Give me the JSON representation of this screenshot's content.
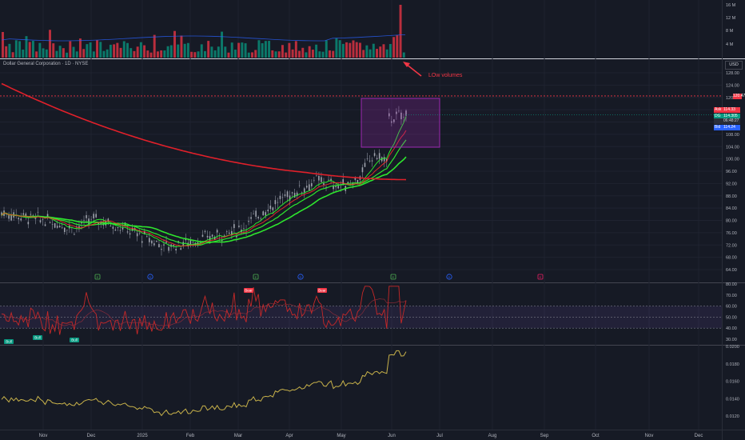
{
  "chart": {
    "symbol_title": "Dollar General Corporation · 1D · NYSE",
    "currency": "USD",
    "annotation": "LOw volumes",
    "price_axis": [
      "128.00",
      "124.00",
      "120.00",
      "116.00",
      "112.00",
      "108.00",
      "104.00",
      "100.00",
      "96.00",
      "92.00",
      "88.00",
      "84.00",
      "80.00",
      "76.00",
      "72.00",
      "68.00",
      "64.00"
    ],
    "volume_axis": [
      "16 M",
      "12 M",
      "8 M",
      "4 M"
    ],
    "rsi_axis": [
      "80.00",
      "70.00",
      "60.00",
      "50.00",
      "40.00",
      "30.00"
    ],
    "osc_axis": [
      "0.0200",
      "0.0180",
      "0.0160",
      "0.0140",
      "0.0120"
    ],
    "time_axis": [
      "Nov",
      "Dec",
      "2025",
      "Feb",
      "Mar",
      "Apr",
      "May",
      "Jun",
      "Jul",
      "Aug",
      "Sep",
      "Oct",
      "Nov",
      "Dec"
    ],
    "price_tags": {
      "red_line": "120.47",
      "ask_label": "Ask",
      "ask": "114.33",
      "last_label": "DG",
      "last": "114.305",
      "timer": "06:48:27",
      "bid_label": "Bid",
      "bid": "114.24"
    },
    "event_markers": [
      "E",
      "D",
      "E",
      "D",
      "E",
      "D",
      "E"
    ],
    "rsi_labels": {
      "bull": "Bull",
      "bear": "Bear"
    },
    "colors": {
      "background": "#161a25",
      "up": "#089981",
      "down": "#f23645",
      "sma_red": "#e0202a",
      "ema_green": "#2ee62e",
      "rsi_line": "#c62828",
      "osc_line": "#c8b24a",
      "box": "#9c27b0"
    }
  }
}
